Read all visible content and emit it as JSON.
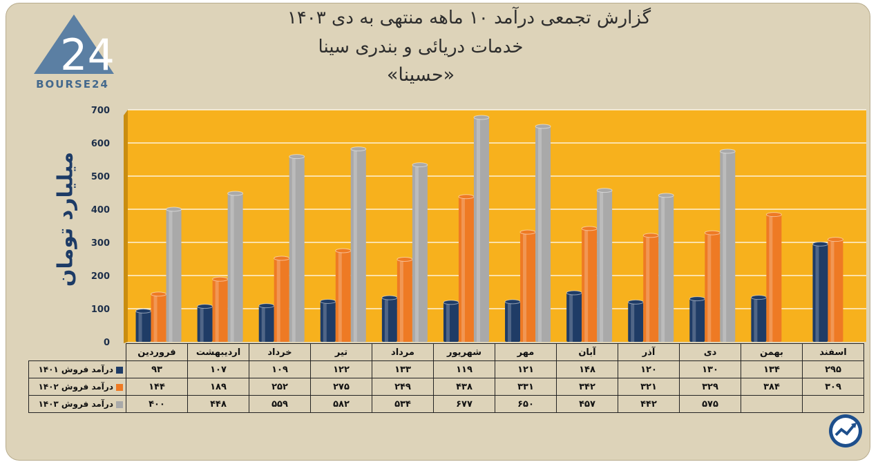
{
  "title": {
    "line1": "گزارش تجمعی درآمد ۱۰ ماهه منتهی به دی ۱۴۰۳",
    "line2": "خدمات دریائی و بندری سینا",
    "line3": "«حسینا»"
  },
  "logo": {
    "text": "BOURSE24",
    "mark": "24"
  },
  "chart_data": {
    "type": "bar",
    "ylabel": "میلیارد تومان",
    "ylim": [
      0,
      700
    ],
    "yticks": [
      0,
      100,
      200,
      300,
      400,
      500,
      600,
      700
    ],
    "ytick_labels": [
      "0",
      "100",
      "200",
      "300",
      "400",
      "500",
      "600",
      "700"
    ],
    "grid": true,
    "legend": "table-below",
    "background_color": "#f7b11d",
    "categories": [
      "فروردین",
      "اردیبهشت",
      "خرداد",
      "تیر",
      "مرداد",
      "شهریور",
      "مهر",
      "آبان",
      "آذر",
      "دی",
      "بهمن",
      "اسفند"
    ],
    "series": [
      {
        "name": "درآمد فروش ۱۴۰۱",
        "color": "#1f3c66",
        "values": [
          93,
          107,
          109,
          122,
          133,
          119,
          121,
          148,
          120,
          130,
          134,
          295
        ],
        "labels": [
          "۹۳",
          "۱۰۷",
          "۱۰۹",
          "۱۲۲",
          "۱۳۳",
          "۱۱۹",
          "۱۲۱",
          "۱۴۸",
          "۱۲۰",
          "۱۳۰",
          "۱۳۴",
          "۲۹۵"
        ]
      },
      {
        "name": "درآمد فروش ۱۴۰۲",
        "color": "#ee7a24",
        "values": [
          144,
          189,
          252,
          275,
          249,
          438,
          331,
          342,
          321,
          329,
          384,
          309
        ],
        "labels": [
          "۱۴۴",
          "۱۸۹",
          "۲۵۲",
          "۲۷۵",
          "۲۴۹",
          "۴۳۸",
          "۳۳۱",
          "۳۴۲",
          "۳۲۱",
          "۳۲۹",
          "۳۸۴",
          "۳۰۹"
        ]
      },
      {
        "name": "درآمد فروش ۱۴۰۳",
        "color": "#a9a9a9",
        "values": [
          400,
          448,
          559,
          582,
          534,
          677,
          650,
          457,
          442,
          575,
          null,
          null
        ],
        "labels": [
          "۴۰۰",
          "۴۴۸",
          "۵۵۹",
          "۵۸۲",
          "۵۳۴",
          "۶۷۷",
          "۶۵۰",
          "۴۵۷",
          "۴۴۲",
          "۵۷۵",
          "",
          ""
        ]
      }
    ]
  }
}
